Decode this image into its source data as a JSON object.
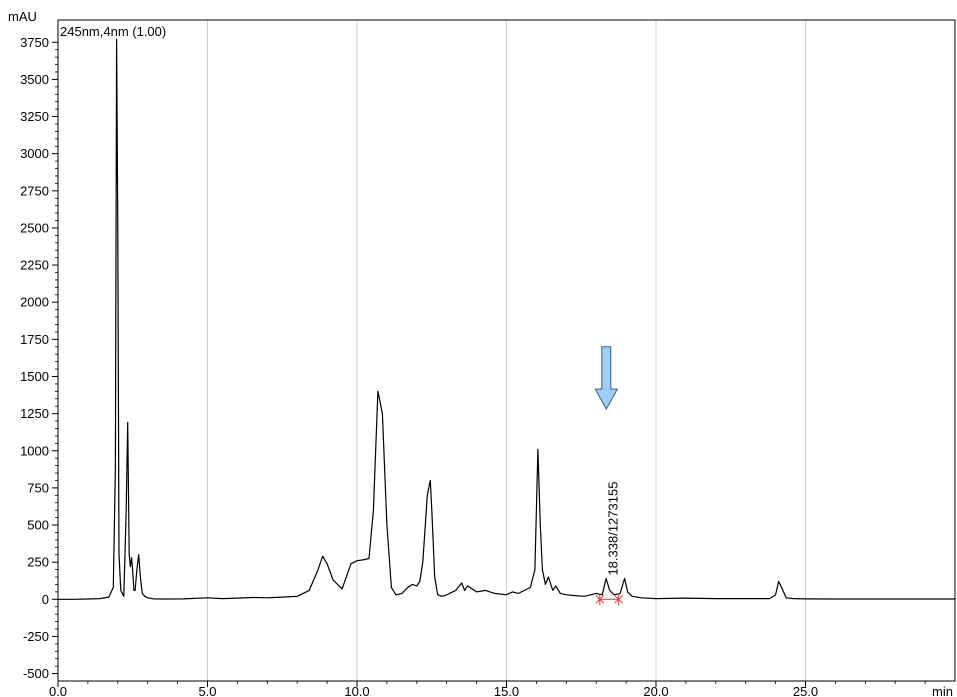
{
  "chart_data": {
    "type": "line",
    "y_unit": "mAU",
    "x_unit": "min",
    "channel_label": "245nm,4nm (1.00)",
    "xlim": [
      0,
      30
    ],
    "ylim": [
      -550,
      3900
    ],
    "x_ticks": [
      {
        "value": 0,
        "label": "0.0"
      },
      {
        "value": 5,
        "label": "5.0"
      },
      {
        "value": 10,
        "label": "10.0"
      },
      {
        "value": 15,
        "label": "15.0"
      },
      {
        "value": 20,
        "label": "20.0"
      },
      {
        "value": 25,
        "label": "25.0"
      }
    ],
    "y_ticks": [
      {
        "value": 3750,
        "label": "3750"
      },
      {
        "value": 3500,
        "label": "3500"
      },
      {
        "value": 3250,
        "label": "3250"
      },
      {
        "value": 3000,
        "label": "3000"
      },
      {
        "value": 2750,
        "label": "2750"
      },
      {
        "value": 2500,
        "label": "2500"
      },
      {
        "value": 2250,
        "label": "2250"
      },
      {
        "value": 2000,
        "label": "2000"
      },
      {
        "value": 1750,
        "label": "1750"
      },
      {
        "value": 1500,
        "label": "1500"
      },
      {
        "value": 1250,
        "label": "1250"
      },
      {
        "value": 1000,
        "label": "1000"
      },
      {
        "value": 750,
        "label": "750"
      },
      {
        "value": 500,
        "label": "500"
      },
      {
        "value": 250,
        "label": "250"
      },
      {
        "value": 0,
        "label": "0"
      },
      {
        "value": -250,
        "label": "-250"
      },
      {
        "value": -500,
        "label": "-500"
      }
    ],
    "grid": "vertical",
    "series": [
      {
        "color": "#000000",
        "x": [
          0.0,
          0.5,
          1.0,
          1.4,
          1.7,
          1.85,
          1.92,
          1.96,
          2.0,
          2.04,
          2.1,
          2.2,
          2.28,
          2.33,
          2.38,
          2.42,
          2.46,
          2.5,
          2.54,
          2.58,
          2.64,
          2.7,
          2.76,
          2.82,
          2.9,
          3.0,
          3.2,
          3.6,
          4.2,
          5.0,
          5.5,
          6.0,
          6.5,
          7.0,
          7.5,
          8.0,
          8.4,
          8.7,
          8.85,
          9.0,
          9.2,
          9.5,
          9.8,
          10.0,
          10.2,
          10.4,
          10.55,
          10.7,
          10.85,
          11.0,
          11.15,
          11.3,
          11.5,
          11.7,
          11.85,
          12.0,
          12.1,
          12.2,
          12.35,
          12.45,
          12.5,
          12.6,
          12.7,
          12.85,
          13.0,
          13.3,
          13.5,
          13.6,
          13.7,
          13.85,
          14.0,
          14.3,
          14.6,
          15.0,
          15.2,
          15.4,
          15.6,
          15.8,
          15.95,
          16.05,
          16.13,
          16.2,
          16.3,
          16.4,
          16.55,
          16.65,
          16.8,
          17.0,
          17.3,
          17.6,
          18.0,
          18.2,
          18.33,
          18.45,
          18.6,
          18.8,
          18.95,
          19.05,
          19.2,
          19.5,
          20.0,
          21.0,
          22.0,
          23.0,
          23.8,
          24.0,
          24.1,
          24.2,
          24.35,
          24.6,
          25.0,
          26.0,
          27.0,
          28.0,
          29.0,
          30.0
        ],
        "y": [
          0,
          0,
          2,
          5,
          15,
          80,
          900,
          3770,
          2500,
          300,
          60,
          20,
          600,
          1190,
          300,
          220,
          280,
          180,
          60,
          60,
          200,
          300,
          140,
          40,
          20,
          10,
          3,
          2,
          3,
          10,
          5,
          8,
          12,
          10,
          15,
          20,
          60,
          200,
          290,
          240,
          130,
          70,
          240,
          260,
          265,
          275,
          600,
          1400,
          1250,
          500,
          80,
          30,
          40,
          80,
          100,
          90,
          120,
          250,
          700,
          800,
          600,
          150,
          30,
          20,
          30,
          60,
          110,
          60,
          90,
          70,
          50,
          60,
          40,
          30,
          50,
          40,
          60,
          80,
          200,
          1010,
          500,
          200,
          100,
          150,
          60,
          90,
          40,
          30,
          25,
          20,
          40,
          30,
          140,
          60,
          30,
          40,
          140,
          50,
          20,
          10,
          5,
          8,
          5,
          5,
          5,
          30,
          120,
          80,
          10,
          5,
          3,
          2,
          2,
          2,
          2,
          2
        ]
      }
    ],
    "annotations": [
      {
        "type": "peak-label",
        "x": 18.338,
        "text": "18.338/1273155"
      },
      {
        "type": "integration-mark",
        "x": 18.12,
        "y": 0
      },
      {
        "type": "integration-mark",
        "x": 18.75,
        "y": 0
      },
      {
        "type": "arrow",
        "x": 18.338,
        "y_from": 1700,
        "y_to": 1280,
        "color": "#9fcdf5"
      }
    ]
  }
}
